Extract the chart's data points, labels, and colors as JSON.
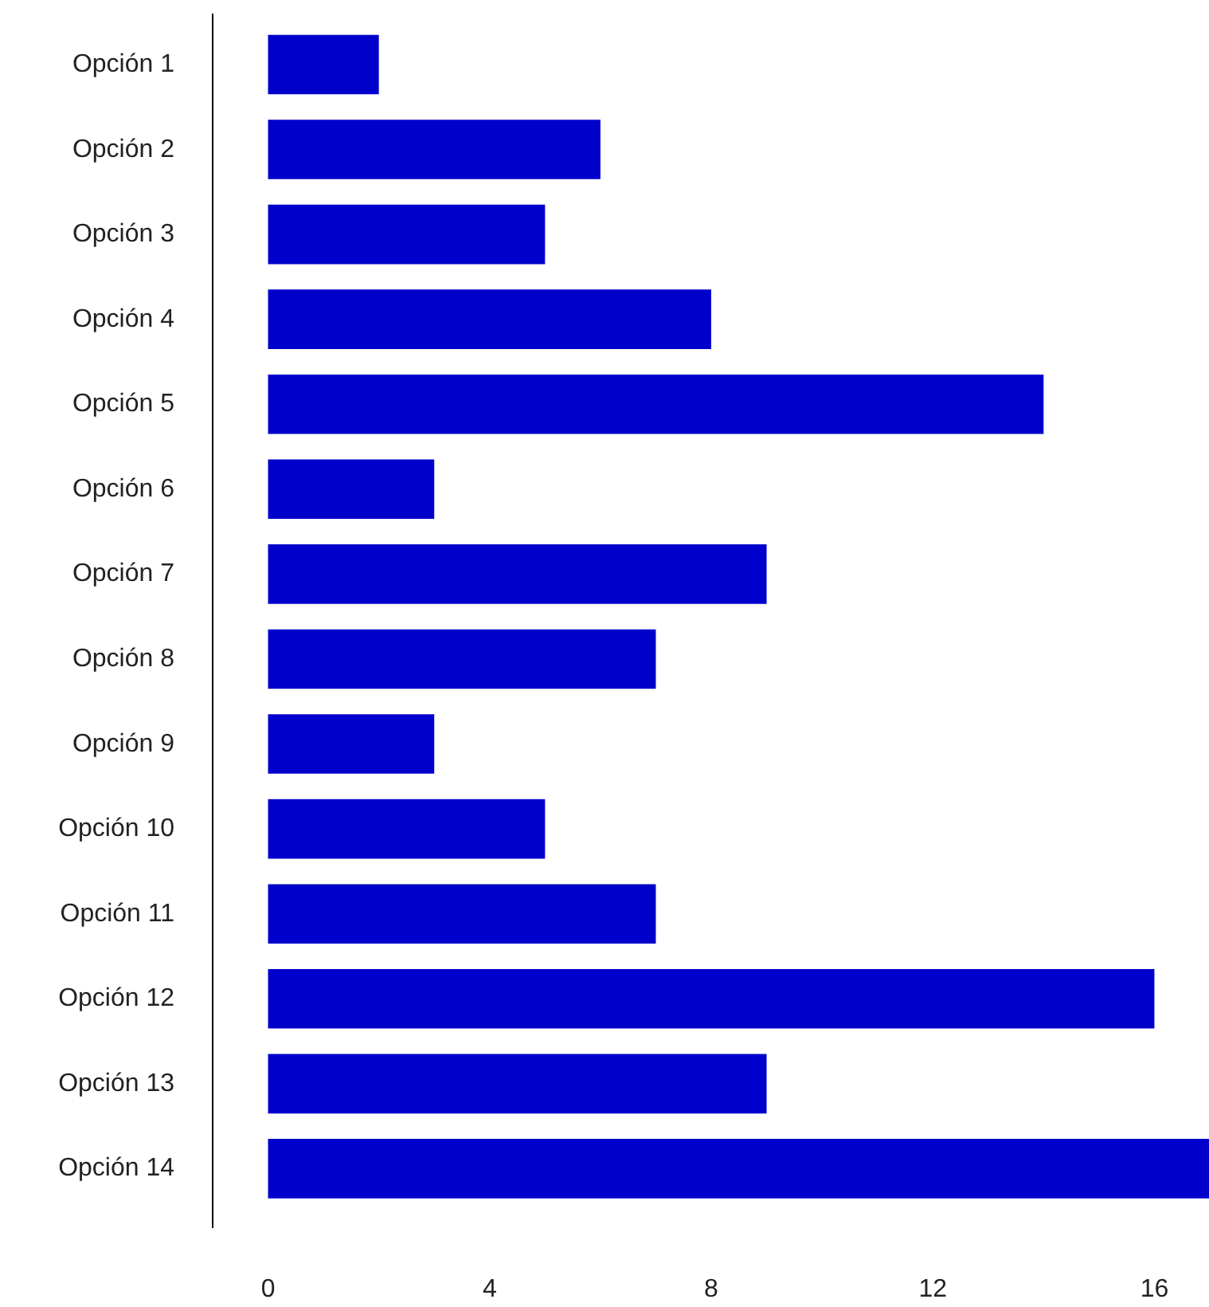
{
  "chart_data": {
    "type": "bar",
    "orientation": "horizontal",
    "categories": [
      "Opción 1",
      "Opción 2",
      "Opción 3",
      "Opción 4",
      "Opción 5",
      "Opción 6",
      "Opción 7",
      "Opción 8",
      "Opción 9",
      "Opción 10",
      "Opción 11",
      "Opción 12",
      "Opción 13",
      "Opción 14"
    ],
    "values": [
      2,
      6,
      5,
      8,
      14,
      3,
      9,
      7,
      3,
      5,
      7,
      16,
      9,
      17
    ],
    "color": "#0000cc",
    "xlim": [
      -1,
      17
    ],
    "xticks": [
      0,
      4,
      8,
      12,
      16
    ],
    "grid": false
  }
}
